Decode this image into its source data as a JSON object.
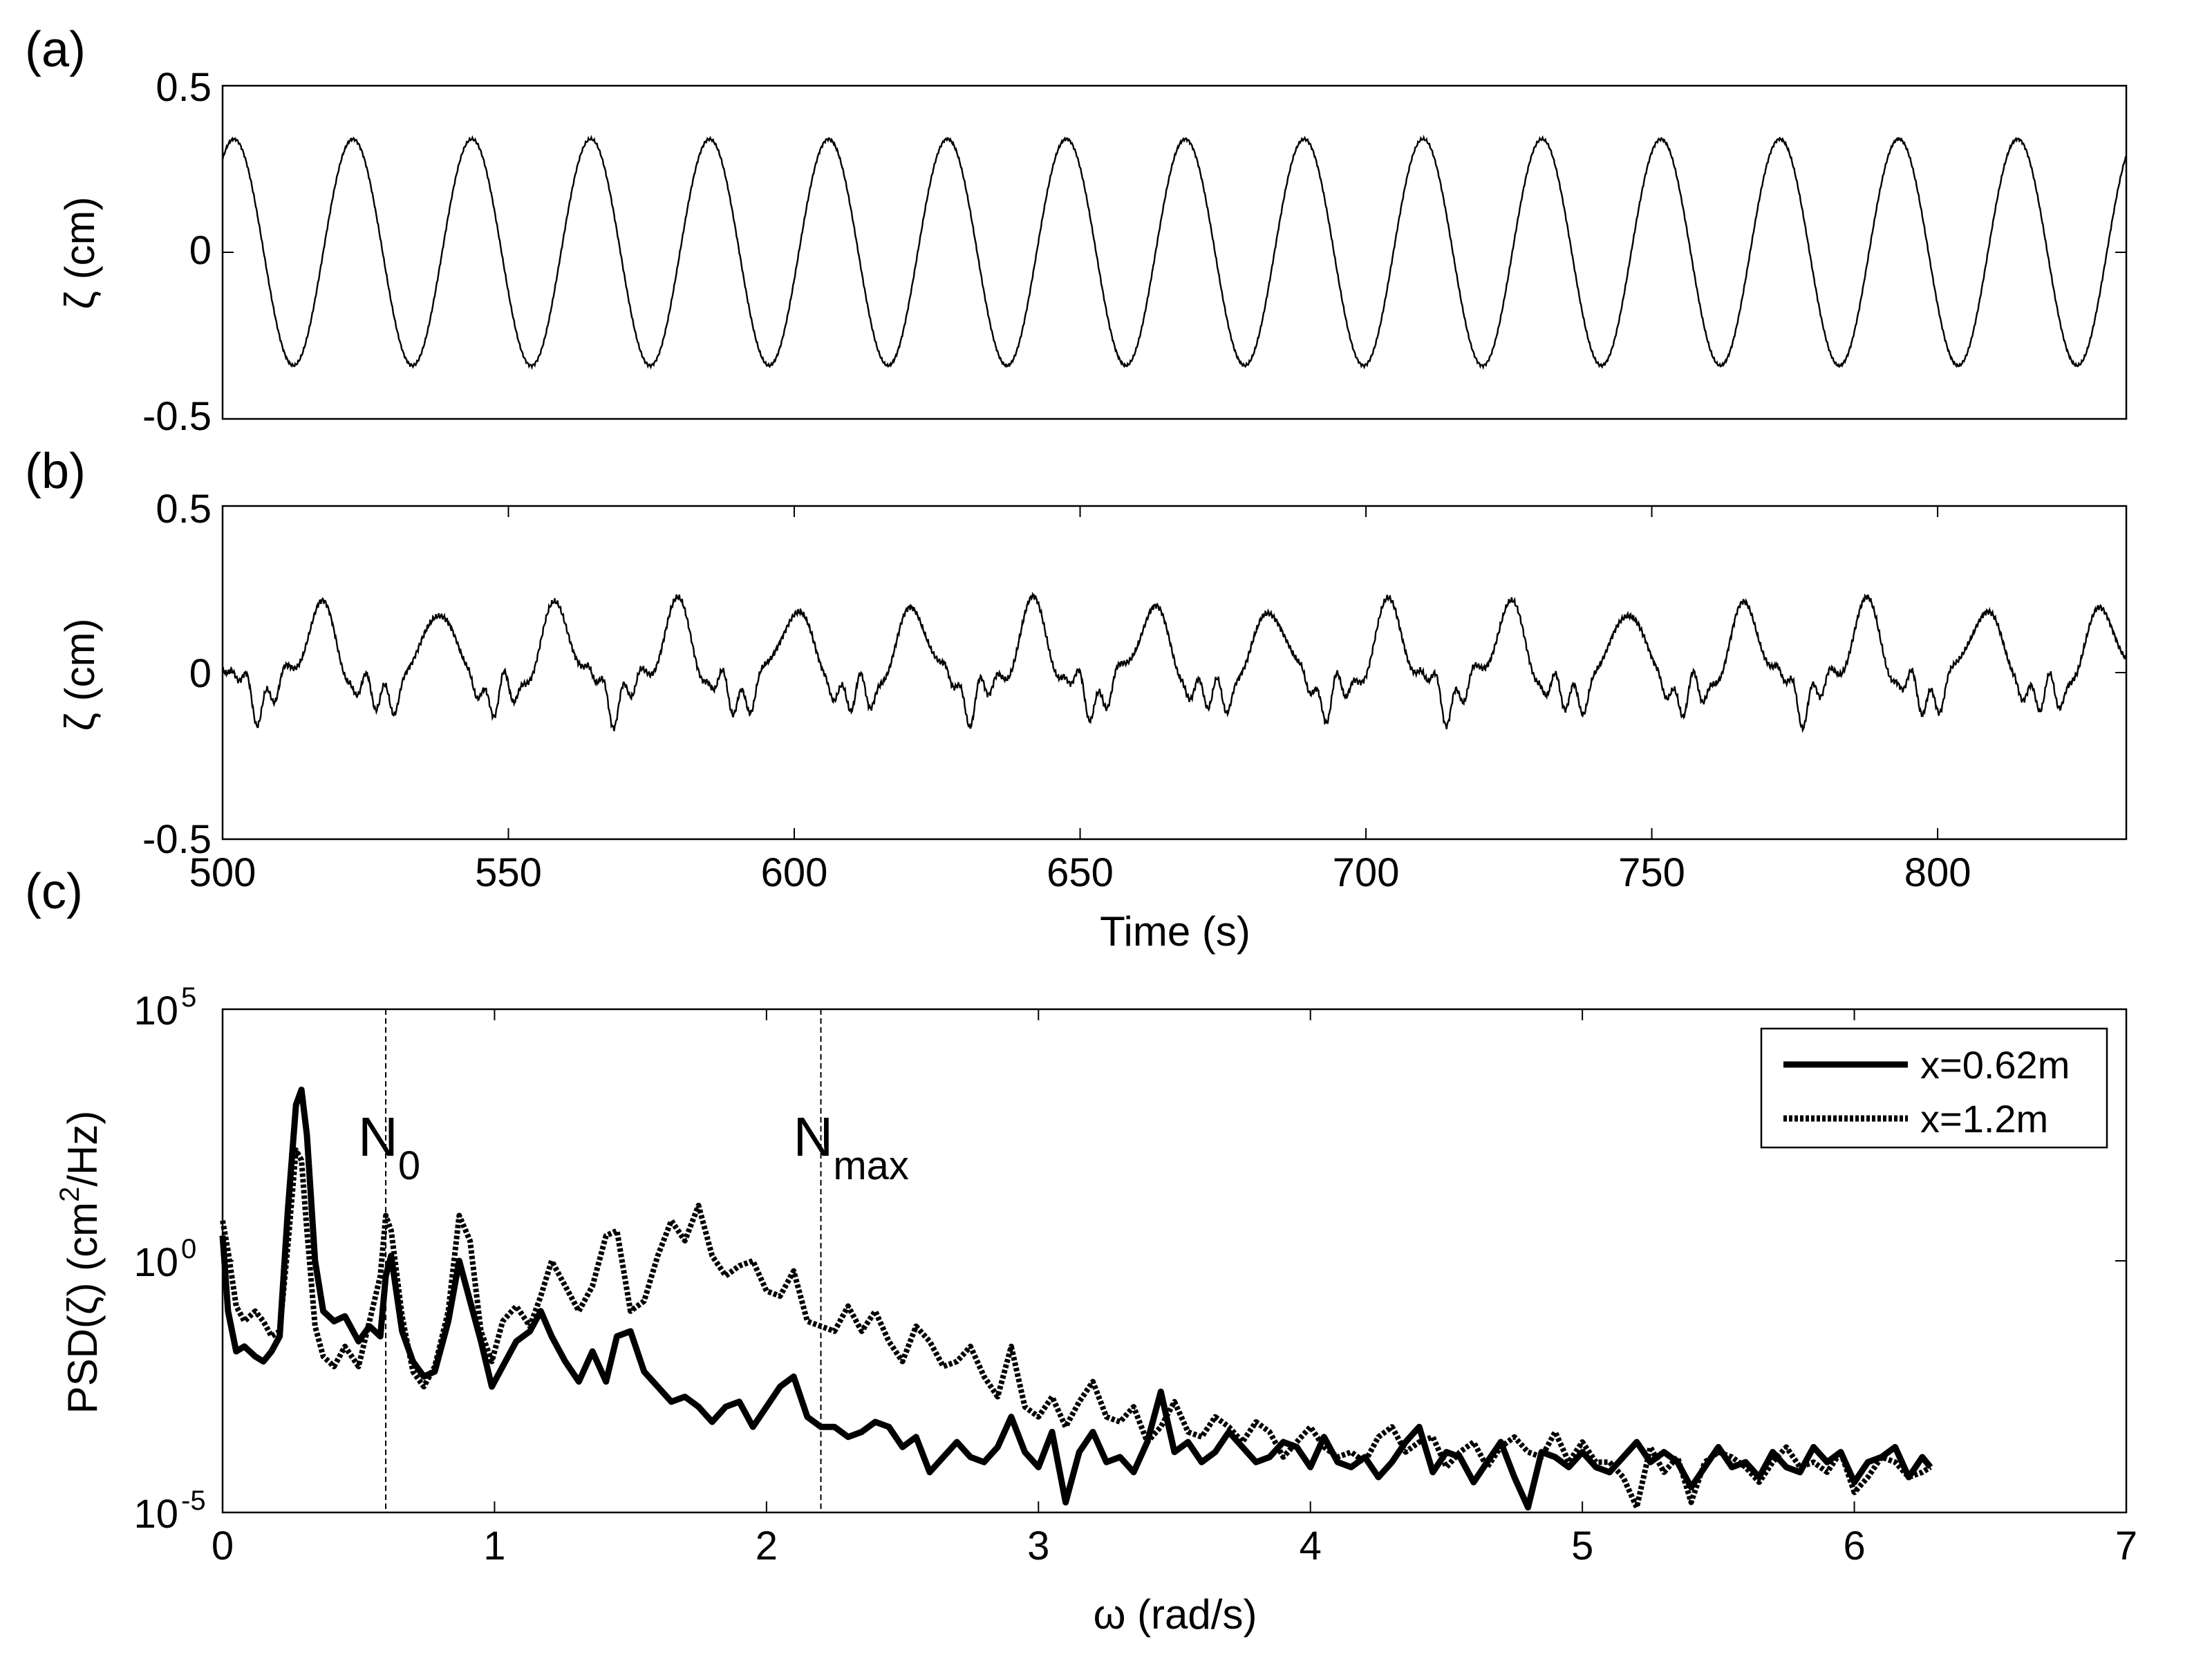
{
  "chart_data": [
    {
      "panel": "(a)",
      "type": "line",
      "title": "",
      "xlabel": "",
      "ylabel": "ζ (cm)",
      "xlim": [
        500,
        833
      ],
      "ylim": [
        -0.5,
        0.5
      ],
      "yticks": [
        "0.5",
        "0",
        "-0.5"
      ],
      "ytick_values": [
        0.5,
        0,
        -0.5
      ],
      "xticks": [],
      "grid": false,
      "series": [
        {
          "signal": "sinusoid",
          "period_s": 20.8,
          "amplitude_cm": 0.34,
          "first_peak_s": 502
        }
      ]
    },
    {
      "panel": "(b)",
      "type": "line",
      "title": "",
      "xlabel": "Time (s)",
      "ylabel": "ζ (cm)",
      "xlim": [
        500,
        833
      ],
      "ylim": [
        -0.5,
        0.5
      ],
      "yticks": [
        "0.5",
        "0",
        "-0.5"
      ],
      "ytick_values": [
        0.5,
        0,
        -0.5
      ],
      "xticks": [
        "500",
        "550",
        "600",
        "650",
        "700",
        "750",
        "800"
      ],
      "xtick_values": [
        500,
        550,
        600,
        650,
        700,
        750,
        800
      ],
      "grid": false,
      "series": [
        {
          "signal": "multi-frequency",
          "period_s": 20.8,
          "max_cm": 0.28,
          "min_cm": -0.22
        }
      ]
    },
    {
      "panel": "(c)",
      "type": "line",
      "title": "",
      "xlabel": "ω (rad/s)",
      "ylabel_main": "PSD(ζ) (cm",
      "ylabel_sup": "2",
      "ylabel_end": "/Hz)",
      "xlim": [
        0,
        7
      ],
      "ylim": [
        -5,
        5
      ],
      "yscale": "log10",
      "xticks": [
        "0",
        "1",
        "2",
        "3",
        "4",
        "5",
        "6",
        "7"
      ],
      "xtick_values": [
        0,
        1,
        2,
        3,
        4,
        5,
        6,
        7
      ],
      "ytick_values": [
        5,
        0,
        -5
      ],
      "ytick_base": "10",
      "ytick_exps": [
        "5",
        "0",
        "-5"
      ],
      "grid": false,
      "legend": "top-right",
      "annotations": [
        {
          "base": "N",
          "sub": "0",
          "x": 0.6
        },
        {
          "base": "N",
          "sub": "max",
          "x": 2.2
        }
      ],
      "series": [
        {
          "name": "x=0.62m",
          "style": "solid",
          "x": [
            0.0,
            0.02,
            0.05,
            0.08,
            0.12,
            0.15,
            0.18,
            0.21,
            0.24,
            0.27,
            0.29,
            0.31,
            0.34,
            0.37,
            0.41,
            0.45,
            0.5,
            0.54,
            0.58,
            0.6,
            0.62,
            0.66,
            0.7,
            0.74,
            0.78,
            0.83,
            0.87,
            0.91,
            0.95,
            0.99,
            1.03,
            1.08,
            1.13,
            1.17,
            1.21,
            1.26,
            1.31,
            1.36,
            1.41,
            1.45,
            1.5,
            1.55,
            1.6,
            1.65,
            1.7,
            1.75,
            1.8,
            1.85,
            1.9,
            1.95,
            2.0,
            2.05,
            2.1,
            2.15,
            2.2,
            2.25,
            2.3,
            2.35,
            2.4,
            2.45,
            2.5,
            2.55,
            2.6,
            2.65,
            2.7,
            2.75,
            2.8,
            2.85,
            2.9,
            2.95,
            3.0,
            3.05,
            3.1,
            3.15,
            3.2,
            3.25,
            3.3,
            3.35,
            3.4,
            3.45,
            3.5,
            3.55,
            3.6,
            3.65,
            3.7,
            3.75,
            3.8,
            3.85,
            3.9,
            3.95,
            4.0,
            4.05,
            4.1,
            4.15,
            4.2,
            4.25,
            4.3,
            4.35,
            4.4,
            4.45,
            4.5,
            4.55,
            4.6,
            4.65,
            4.7,
            4.75,
            4.8,
            4.85,
            4.9,
            4.95,
            5.0,
            5.05,
            5.1,
            5.15,
            5.2,
            5.25,
            5.3,
            5.35,
            5.4,
            5.45,
            5.5,
            5.55,
            5.6,
            5.65,
            5.7,
            5.75,
            5.8,
            5.85,
            5.9,
            5.95,
            6.0,
            6.05,
            6.1,
            6.15,
            6.2,
            6.25,
            6.28
          ],
          "y": [
            0.5,
            -1.0,
            -1.8,
            -1.7,
            -1.9,
            -2.0,
            -1.8,
            -1.5,
            1.0,
            3.1,
            3.4,
            2.5,
            0.0,
            -1.0,
            -1.2,
            -1.1,
            -1.6,
            -1.3,
            -1.5,
            -0.3,
            0.1,
            -1.4,
            -2.0,
            -2.3,
            -2.2,
            -1.2,
            0.0,
            -0.8,
            -1.6,
            -2.5,
            -2.1,
            -1.6,
            -1.4,
            -1.0,
            -1.5,
            -2.0,
            -2.4,
            -1.8,
            -2.4,
            -1.5,
            -1.4,
            -2.2,
            -2.5,
            -2.8,
            -2.7,
            -2.9,
            -3.2,
            -2.9,
            -2.8,
            -3.3,
            -2.9,
            -2.5,
            -2.3,
            -3.1,
            -3.3,
            -3.3,
            -3.5,
            -3.4,
            -3.2,
            -3.3,
            -3.7,
            -3.5,
            -4.2,
            -3.9,
            -3.6,
            -3.9,
            -4.0,
            -3.7,
            -3.1,
            -3.8,
            -4.1,
            -3.4,
            -4.8,
            -3.8,
            -3.4,
            -4.0,
            -3.9,
            -4.2,
            -3.6,
            -2.6,
            -3.8,
            -3.6,
            -4.0,
            -3.8,
            -3.4,
            -3.7,
            -4.0,
            -3.9,
            -3.6,
            -3.7,
            -4.1,
            -3.5,
            -4.0,
            -4.1,
            -3.9,
            -4.3,
            -4.0,
            -3.6,
            -3.3,
            -4.2,
            -3.8,
            -3.9,
            -4.4,
            -4.0,
            -3.6,
            -4.3,
            -4.9,
            -3.8,
            -3.9,
            -4.1,
            -3.8,
            -4.1,
            -4.2,
            -3.9,
            -3.6,
            -4.0,
            -3.8,
            -4.0,
            -4.5,
            -4.1,
            -3.7,
            -4.1,
            -4.0,
            -4.3,
            -3.8,
            -4.1,
            -4.2,
            -3.7,
            -4.0,
            -3.8,
            -4.4,
            -4.0,
            -3.9,
            -3.7,
            -4.3,
            -3.9,
            -4.1
          ]
        },
        {
          "name": "x=1.2m",
          "style": "dotted",
          "x": [
            0.0,
            0.02,
            0.05,
            0.08,
            0.12,
            0.15,
            0.18,
            0.21,
            0.24,
            0.27,
            0.29,
            0.31,
            0.34,
            0.37,
            0.41,
            0.45,
            0.5,
            0.54,
            0.58,
            0.6,
            0.62,
            0.66,
            0.7,
            0.74,
            0.78,
            0.83,
            0.87,
            0.91,
            0.95,
            0.99,
            1.03,
            1.08,
            1.13,
            1.17,
            1.21,
            1.26,
            1.31,
            1.36,
            1.41,
            1.45,
            1.5,
            1.55,
            1.6,
            1.65,
            1.7,
            1.75,
            1.8,
            1.85,
            1.9,
            1.95,
            2.0,
            2.05,
            2.1,
            2.15,
            2.2,
            2.25,
            2.3,
            2.35,
            2.4,
            2.45,
            2.5,
            2.55,
            2.6,
            2.65,
            2.7,
            2.75,
            2.8,
            2.85,
            2.9,
            2.95,
            3.0,
            3.05,
            3.1,
            3.15,
            3.2,
            3.25,
            3.3,
            3.35,
            3.4,
            3.45,
            3.5,
            3.55,
            3.6,
            3.65,
            3.7,
            3.75,
            3.8,
            3.85,
            3.9,
            3.95,
            4.0,
            4.05,
            4.1,
            4.15,
            4.2,
            4.25,
            4.3,
            4.35,
            4.4,
            4.45,
            4.5,
            4.55,
            4.6,
            4.65,
            4.7,
            4.75,
            4.8,
            4.85,
            4.9,
            4.95,
            5.0,
            5.05,
            5.1,
            5.15,
            5.2,
            5.25,
            5.3,
            5.35,
            5.4,
            5.45,
            5.5,
            5.55,
            5.6,
            5.65,
            5.7,
            5.75,
            5.8,
            5.85,
            5.9,
            5.95,
            6.0,
            6.05,
            6.1,
            6.15,
            6.2,
            6.25,
            6.28
          ],
          "y": [
            0.8,
            0.2,
            -0.9,
            -1.2,
            -1.0,
            -1.2,
            -1.5,
            -1.4,
            0.3,
            2.2,
            2.0,
            0.6,
            -1.3,
            -1.9,
            -2.1,
            -1.7,
            -2.1,
            -1.2,
            -0.3,
            0.9,
            0.6,
            -1.1,
            -2.2,
            -2.5,
            -2.1,
            -1.0,
            0.9,
            0.4,
            -1.4,
            -2.0,
            -1.2,
            -0.9,
            -1.3,
            -0.7,
            0.0,
            -0.5,
            -1.0,
            -0.5,
            0.5,
            0.6,
            -1.0,
            -0.8,
            0.1,
            0.8,
            0.4,
            1.1,
            0.1,
            -0.3,
            -0.1,
            0.0,
            -0.6,
            -0.7,
            -0.2,
            -1.2,
            -1.3,
            -1.4,
            -0.9,
            -1.4,
            -1.0,
            -1.6,
            -2.0,
            -1.3,
            -1.6,
            -2.1,
            -2.0,
            -1.7,
            -2.3,
            -2.7,
            -1.7,
            -2.9,
            -3.1,
            -2.7,
            -3.3,
            -2.8,
            -2.4,
            -3.1,
            -3.2,
            -2.9,
            -3.6,
            -3.3,
            -2.8,
            -3.4,
            -3.5,
            -3.1,
            -3.3,
            -3.6,
            -3.2,
            -3.4,
            -3.9,
            -3.6,
            -3.3,
            -3.7,
            -3.9,
            -3.8,
            -4.0,
            -3.5,
            -3.3,
            -3.8,
            -3.6,
            -3.5,
            -4.1,
            -3.8,
            -3.6,
            -4.1,
            -3.7,
            -3.5,
            -3.8,
            -3.9,
            -3.4,
            -4.0,
            -3.6,
            -4.0,
            -4.0,
            -4.3,
            -4.9,
            -3.7,
            -4.2,
            -3.9,
            -4.8,
            -4.0,
            -3.8,
            -3.9,
            -4.1,
            -4.4,
            -4.0,
            -3.7,
            -4.1,
            -4.0,
            -4.2,
            -3.8,
            -4.6,
            -4.3,
            -3.9,
            -4.0,
            -4.3,
            -4.2,
            -4.1
          ]
        }
      ]
    }
  ]
}
